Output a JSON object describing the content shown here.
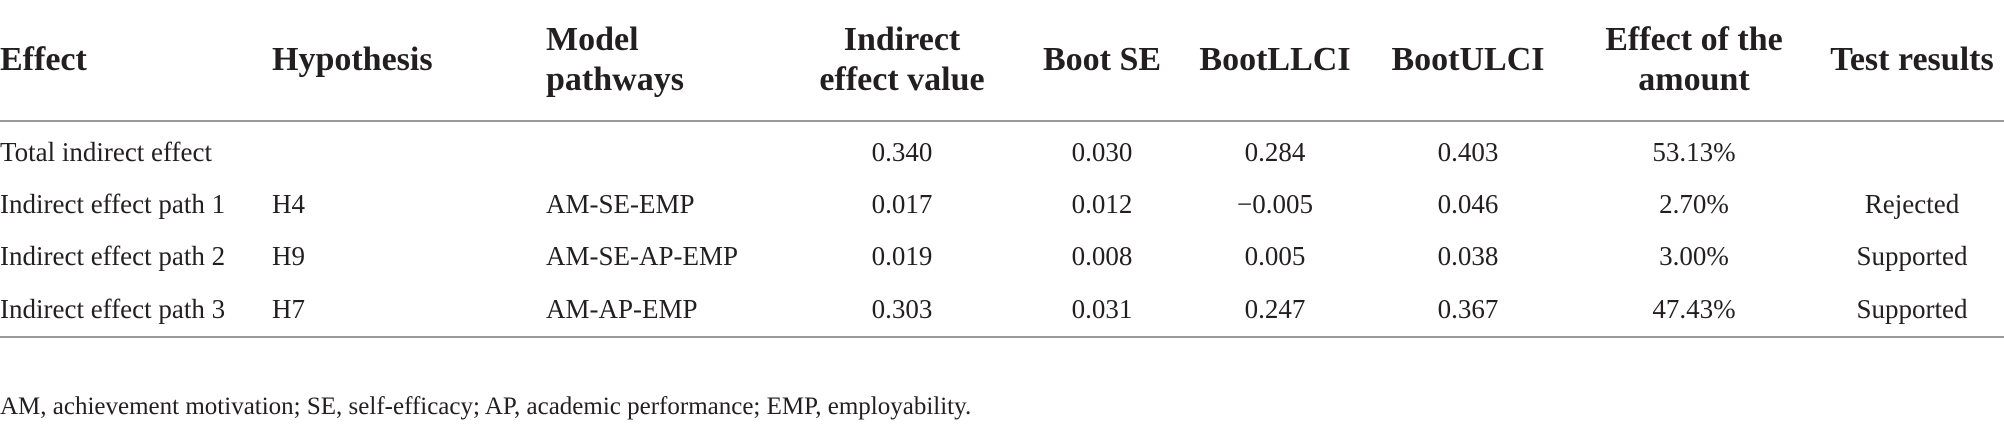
{
  "table": {
    "headers": [
      "Effect",
      "Hypothesis",
      "Model pathways",
      "Indirect effect value",
      "Boot SE",
      "BootLLCI",
      "BootULCI",
      "Effect of the amount",
      "Test results"
    ],
    "rows": [
      [
        "Total indirect effect",
        "",
        "",
        "0.340",
        "0.030",
        "0.284",
        "0.403",
        "53.13%",
        ""
      ],
      [
        "Indirect effect path 1",
        "H4",
        "AM-SE-EMP",
        "0.017",
        "0.012",
        "−0.005",
        "0.046",
        "2.70%",
        "Rejected"
      ],
      [
        "Indirect effect path 2",
        "H9",
        "AM-SE-AP-EMP",
        "0.019",
        "0.008",
        "0.005",
        "0.038",
        "3.00%",
        "Supported"
      ],
      [
        "Indirect effect path 3",
        "H7",
        "AM-AP-EMP",
        "0.303",
        "0.031",
        "0.247",
        "0.367",
        "47.43%",
        "Supported"
      ]
    ]
  },
  "footnote": "AM, achievement motivation; SE, self-efficacy; AP, academic performance; EMP, employability."
}
